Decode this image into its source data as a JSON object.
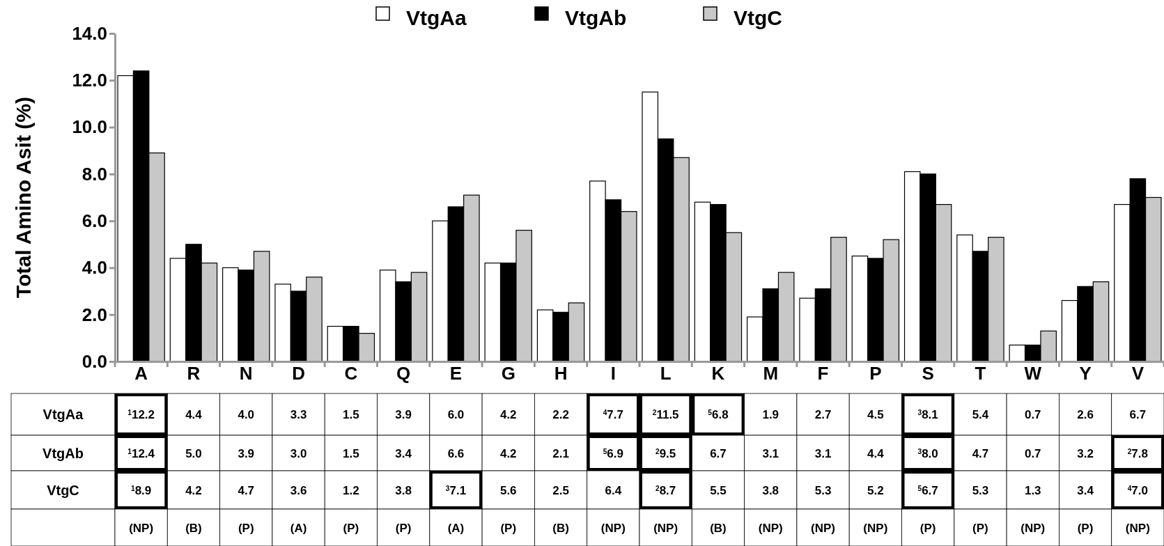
{
  "chart_data": {
    "type": "bar",
    "ylabel": "Total Amino Asit (%)",
    "categories": [
      "A",
      "R",
      "N",
      "D",
      "C",
      "Q",
      "E",
      "G",
      "H",
      "I",
      "L",
      "K",
      "M",
      "F",
      "P",
      "S",
      "T",
      "W",
      "Y",
      "V"
    ],
    "series": [
      {
        "name": "VtgAa",
        "color": "#ffffff",
        "values": [
          12.2,
          4.4,
          4.0,
          3.3,
          1.5,
          3.9,
          6.0,
          4.2,
          2.2,
          7.7,
          11.5,
          6.8,
          1.9,
          2.7,
          4.5,
          8.1,
          5.4,
          0.7,
          2.6,
          6.7
        ],
        "value_labels": [
          "$^{1}$12.2",
          "4.4",
          "4.0",
          "3.3",
          "1.5",
          "3.9",
          "6.0",
          "4.2",
          "2.2",
          "$^{4}$7.7",
          "$^{2}$11.5",
          "$^{5}$6.8",
          "1.9",
          "2.7",
          "4.5",
          "$^{3}$8.1",
          "5.4",
          "0.7",
          "2.6",
          "6.7"
        ]
      },
      {
        "name": "VtgAb",
        "color": "#000000",
        "values": [
          12.4,
          5.0,
          3.9,
          3.0,
          1.5,
          3.4,
          6.6,
          4.2,
          2.1,
          6.9,
          9.5,
          6.7,
          3.1,
          3.1,
          4.4,
          8.0,
          4.7,
          0.7,
          3.2,
          7.8
        ],
        "value_labels": [
          "$^{1}$12.4",
          "5.0",
          "3.9",
          "3.0",
          "1.5",
          "3.4",
          "6.6",
          "4.2",
          "2.1",
          "$^{5}$6.9",
          "$^{2}$9.5",
          "6.7",
          "3.1",
          "3.1",
          "4.4",
          "$^{3}$8.0",
          "4.7",
          "0.7",
          "3.2",
          "$^{2}$7.8"
        ]
      },
      {
        "name": "VtgC",
        "color": "#c8c8c8",
        "values": [
          8.9,
          4.2,
          4.7,
          3.6,
          1.2,
          3.8,
          7.1,
          5.6,
          2.5,
          6.4,
          8.7,
          5.5,
          3.8,
          5.3,
          5.2,
          6.7,
          5.3,
          1.3,
          3.4,
          7.0
        ],
        "value_labels": [
          "$^{1}$8.9",
          "4.2",
          "4.7",
          "3.6",
          "1.2",
          "3.8",
          "$^{3}$7.1",
          "5.6",
          "2.5",
          "6.4",
          "$^{2}$8.7",
          "5.5",
          "3.8",
          "5.3",
          "5.2",
          "$^{5}$6.7",
          "5.3",
          "1.3",
          "3.4",
          "$^{4}$7.0"
        ]
      }
    ],
    "annotations": [
      "(NP)",
      "(B)",
      "(P)",
      "(A)",
      "(P)",
      "(P)",
      "(A)",
      "(P)",
      "(B)",
      "(NP)",
      "(NP)",
      "(B)",
      "(NP)",
      "(NP)",
      "(NP)",
      "(P)",
      "(P)",
      "(NP)",
      "(P)",
      "(NP)"
    ],
    "ylim": [
      0,
      14
    ],
    "yticks": [
      {
        "value": 0,
        "label": "0.0"
      },
      {
        "value": 2,
        "label": "2.0"
      },
      {
        "value": 4,
        "label": "4.0"
      },
      {
        "value": 6,
        "label": "6.0"
      },
      {
        "value": 8,
        "label": "8.0"
      },
      {
        "value": 10,
        "label": "10.0"
      },
      {
        "value": 12,
        "label": "12.0"
      },
      {
        "value": 14,
        "label": "14.0"
      }
    ],
    "legend": "top"
  }
}
